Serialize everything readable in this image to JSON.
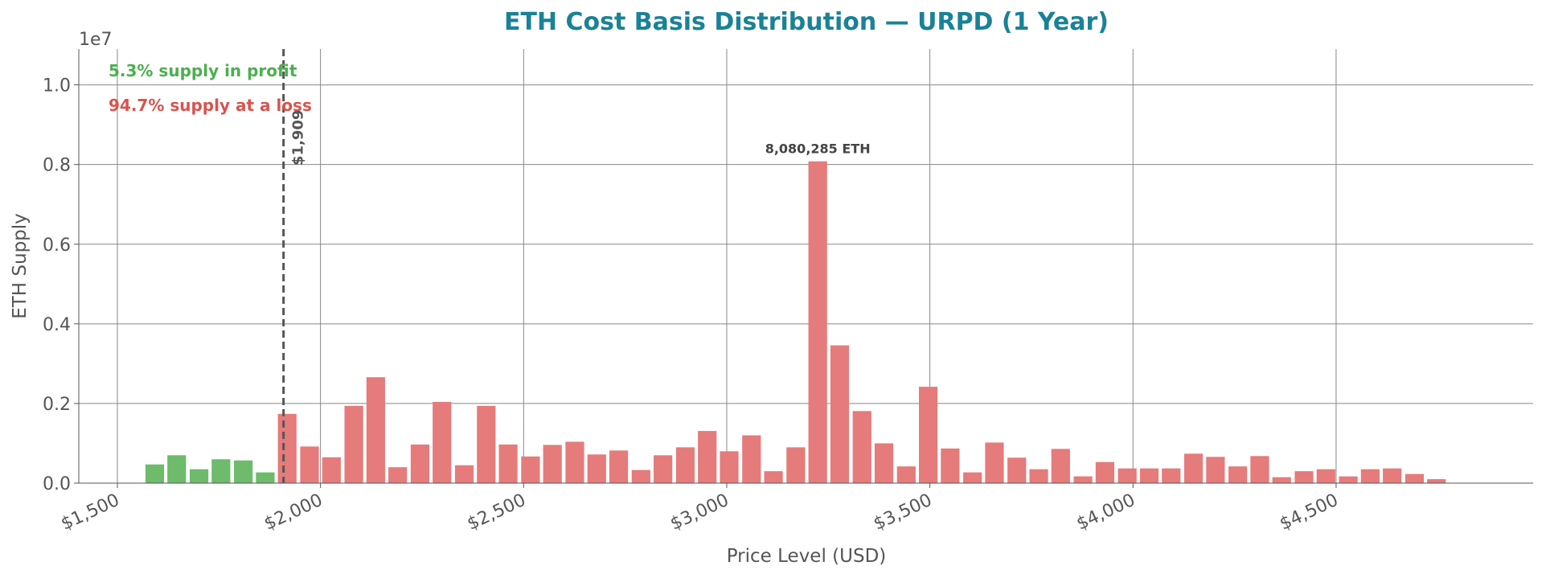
{
  "chart_data": {
    "type": "bar",
    "title": "ETH Cost Basis Distribution — URPD (1 Year)",
    "x_label": "Price Level (USD)",
    "y_label": "ETH Supply",
    "y_offset_label": "1e7",
    "x": [
      1592,
      1646,
      1701,
      1755,
      1810,
      1864,
      1918,
      1973,
      2027,
      2082,
      2136,
      2190,
      2245,
      2299,
      2354,
      2408,
      2462,
      2517,
      2571,
      2626,
      2680,
      2734,
      2789,
      2843,
      2898,
      2952,
      3006,
      3061,
      3115,
      3170,
      3224,
      3278,
      3333,
      3387,
      3442,
      3496,
      3550,
      3605,
      3659,
      3714,
      3768,
      3822,
      3877,
      3931,
      3986,
      4040,
      4094,
      4149,
      4203,
      4258,
      4312,
      4366,
      4421,
      4475,
      4530,
      4584,
      4638,
      4693,
      4747
    ],
    "values": [
      470000,
      700000,
      350000,
      600000,
      570000,
      270000,
      1740000,
      920000,
      650000,
      1940000,
      2660000,
      400000,
      970000,
      2040000,
      450000,
      1940000,
      970000,
      670000,
      960000,
      1040000,
      720000,
      820000,
      330000,
      700000,
      900000,
      1310000,
      800000,
      1200000,
      300000,
      900000,
      8080285,
      3460000,
      1810000,
      1000000,
      420000,
      2420000,
      870000,
      270000,
      1020000,
      640000,
      350000,
      860000,
      170000,
      530000,
      370000,
      370000,
      370000,
      740000,
      660000,
      420000,
      680000,
      150000,
      300000,
      350000,
      170000,
      350000,
      370000,
      230000,
      100000
    ],
    "value_labels": [
      null,
      null,
      null,
      null,
      null,
      null,
      null,
      null,
      null,
      null,
      null,
      null,
      null,
      null,
      null,
      null,
      null,
      null,
      null,
      null,
      null,
      null,
      null,
      null,
      null,
      null,
      null,
      null,
      null,
      null,
      "8,080,285 ETH",
      null,
      null,
      null,
      null,
      null,
      null,
      null,
      null,
      null,
      null,
      null,
      null,
      null,
      null,
      null,
      null,
      null,
      null,
      null,
      null,
      null,
      null,
      null,
      null,
      null,
      null,
      null,
      null
    ],
    "current_price": {
      "value": 1909,
      "label": "$1,909"
    },
    "profit_color": "#6dbb6b",
    "loss_color": "#e57b7b",
    "annotations": [
      {
        "text": "5.3% supply in profit",
        "color": "#4caf50"
      },
      {
        "text": "94.7% supply at a loss",
        "color": "#d9534f"
      }
    ],
    "xlim": [
      1405,
      4985
    ],
    "ylim": [
      0,
      10900000
    ],
    "xticks": [
      {
        "value": 1500,
        "label": "$1,500"
      },
      {
        "value": 2000,
        "label": "$2,000"
      },
      {
        "value": 2500,
        "label": "$2,500"
      },
      {
        "value": 3000,
        "label": "$3,000"
      },
      {
        "value": 3500,
        "label": "$3,500"
      },
      {
        "value": 4000,
        "label": "$4,000"
      },
      {
        "value": 4500,
        "label": "$4,500"
      }
    ],
    "yticks": [
      {
        "value": 0,
        "label": "0.0"
      },
      {
        "value": 2000000,
        "label": "0.2"
      },
      {
        "value": 4000000,
        "label": "0.4"
      },
      {
        "value": 6000000,
        "label": "0.6"
      },
      {
        "value": 8000000,
        "label": "0.8"
      },
      {
        "value": 10000000,
        "label": "1.0"
      }
    ],
    "grid": true
  }
}
